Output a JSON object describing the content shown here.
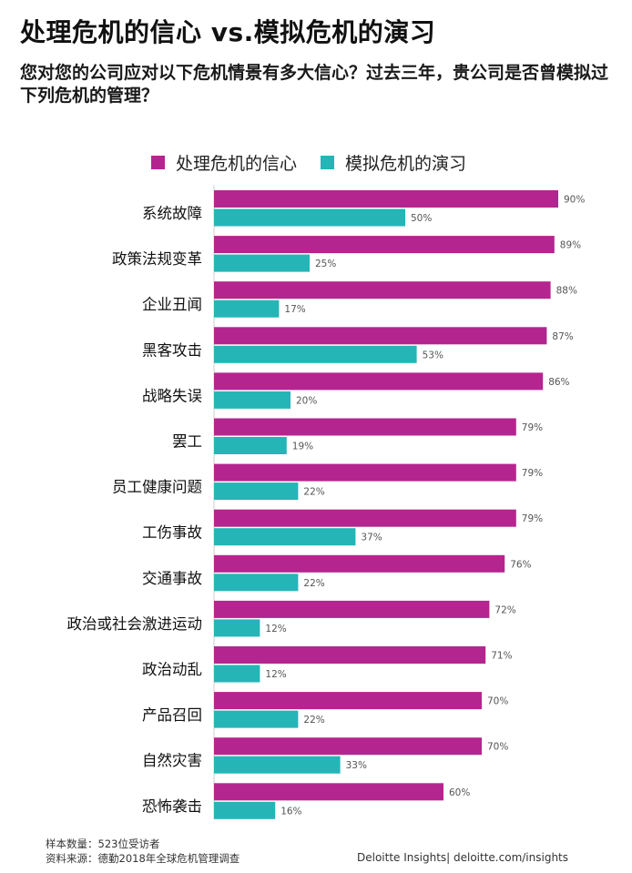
{
  "title": "处理危机的信心 vs.模拟危机的演习",
  "subtitle": "您对您的公司应对以下危机情景有多大信心？过去三年，贵公司是否曾模拟过下列危机的管理？",
  "colors": {
    "confidence": "#b5258f",
    "simulation": "#25b5b7"
  },
  "chart_data": {
    "type": "bar",
    "orientation": "horizontal",
    "categories": [
      "系统故障",
      "政策法规变革",
      "企业丑闻",
      "黑客攻击",
      "战略失误",
      "罢工",
      "员工健康问题",
      "工伤事故",
      "交通事故",
      "政治或社会激进运动",
      "政治动乱",
      "产品召回",
      "自然灾害",
      "恐怖袭击"
    ],
    "series": [
      {
        "name": "处理危机的信心",
        "values": [
          90,
          89,
          88,
          87,
          86,
          79,
          79,
          79,
          76,
          72,
          71,
          70,
          70,
          60
        ]
      },
      {
        "name": "模拟危机的演习",
        "values": [
          50,
          25,
          17,
          53,
          20,
          19,
          22,
          37,
          22,
          12,
          12,
          22,
          33,
          16
        ]
      }
    ],
    "value_suffix": "%",
    "xlim": [
      0,
      100
    ],
    "legend_position": "top",
    "grid": false
  },
  "footer": {
    "sample": "样本数量：523位受访者",
    "source": "资料来源：德勤2018年全球危机管理调查",
    "brand": "Deloitte Insights| deloitte.com/insights"
  }
}
